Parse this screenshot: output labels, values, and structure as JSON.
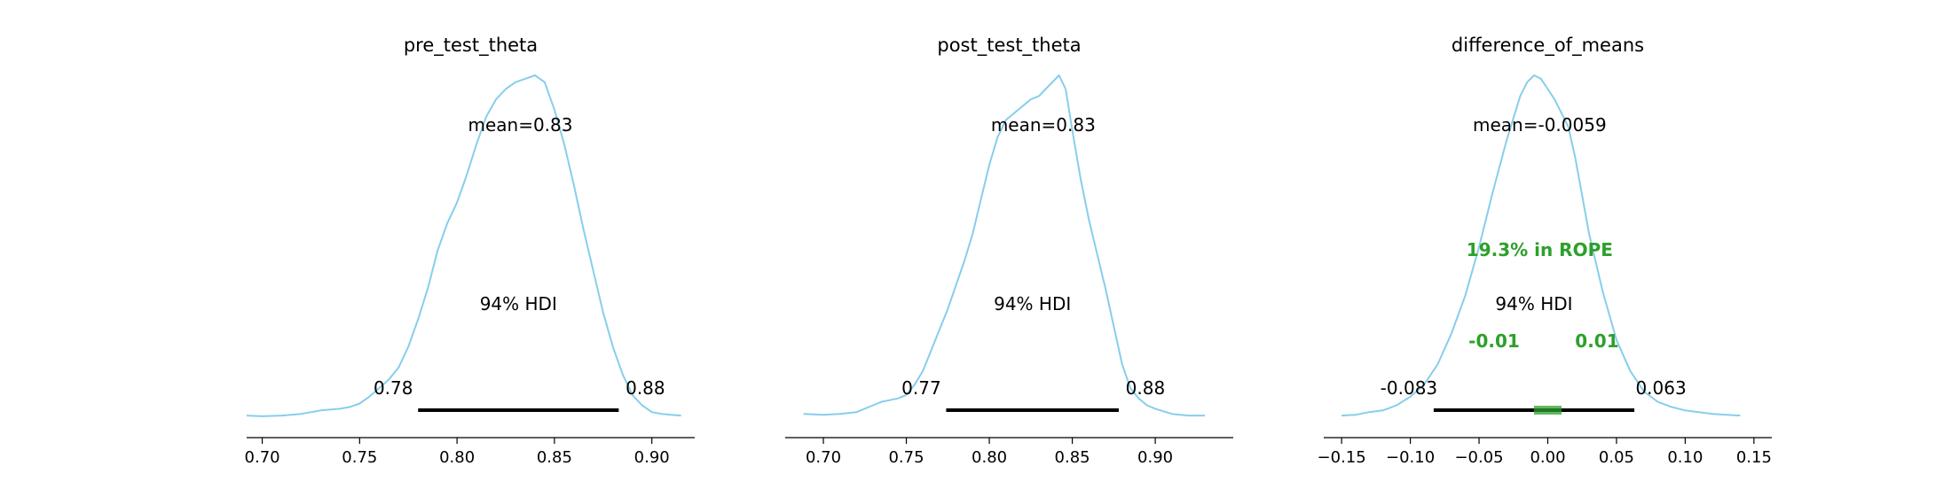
{
  "colors": {
    "density": "#87ceeb",
    "hdi_bar": "#000000",
    "rope": "#2ca02c",
    "axis": "#000000",
    "text": "#000000"
  },
  "chart_data": [
    {
      "type": "area",
      "title": "pre_test_theta",
      "xlabel": "",
      "ylabel": "",
      "x_ticks": [
        0.7,
        0.75,
        0.8,
        0.85,
        0.9
      ],
      "x_tick_labels": [
        "0.70",
        "0.75",
        "0.80",
        "0.85",
        "0.90"
      ],
      "xlim": [
        0.692,
        0.922
      ],
      "mean_label": "mean=0.83",
      "hdi_label": "94% HDI",
      "hdi": [
        0.78,
        0.883
      ],
      "hdi_labels": [
        "0.78",
        "0.88"
      ],
      "density": {
        "x": [
          0.692,
          0.7,
          0.71,
          0.72,
          0.73,
          0.74,
          0.745,
          0.75,
          0.755,
          0.76,
          0.765,
          0.77,
          0.775,
          0.78,
          0.785,
          0.79,
          0.795,
          0.8,
          0.805,
          0.81,
          0.815,
          0.82,
          0.825,
          0.83,
          0.835,
          0.84,
          0.845,
          0.85,
          0.855,
          0.86,
          0.865,
          0.87,
          0.875,
          0.88,
          0.885,
          0.89,
          0.895,
          0.9,
          0.905,
          0.91,
          0.915
        ],
        "y": [
          0.01,
          0.008,
          0.01,
          0.015,
          0.025,
          0.03,
          0.035,
          0.045,
          0.065,
          0.09,
          0.115,
          0.15,
          0.21,
          0.29,
          0.38,
          0.49,
          0.57,
          0.63,
          0.71,
          0.8,
          0.88,
          0.93,
          0.96,
          0.98,
          0.99,
          1.0,
          0.98,
          0.9,
          0.8,
          0.68,
          0.55,
          0.43,
          0.31,
          0.21,
          0.13,
          0.07,
          0.04,
          0.02,
          0.015,
          0.012,
          0.01
        ]
      }
    },
    {
      "type": "area",
      "title": "post_test_theta",
      "xlabel": "",
      "ylabel": "",
      "x_ticks": [
        0.7,
        0.75,
        0.8,
        0.85,
        0.9
      ],
      "x_tick_labels": [
        "0.70",
        "0.75",
        "0.80",
        "0.85",
        "0.90"
      ],
      "xlim": [
        0.677,
        0.947
      ],
      "mean_label": "mean=0.83",
      "hdi_label": "94% HDI",
      "hdi": [
        0.774,
        0.878
      ],
      "hdi_labels": [
        "0.77",
        "0.88"
      ],
      "density": {
        "x": [
          0.688,
          0.7,
          0.71,
          0.72,
          0.73,
          0.735,
          0.74,
          0.745,
          0.75,
          0.755,
          0.76,
          0.765,
          0.77,
          0.775,
          0.78,
          0.785,
          0.79,
          0.795,
          0.8,
          0.805,
          0.81,
          0.815,
          0.82,
          0.825,
          0.83,
          0.834,
          0.838,
          0.842,
          0.846,
          0.85,
          0.855,
          0.86,
          0.865,
          0.87,
          0.875,
          0.88,
          0.885,
          0.89,
          0.895,
          0.9,
          0.91,
          0.92,
          0.93
        ],
        "y": [
          0.015,
          0.012,
          0.015,
          0.02,
          0.04,
          0.05,
          0.055,
          0.06,
          0.07,
          0.1,
          0.14,
          0.2,
          0.26,
          0.32,
          0.39,
          0.46,
          0.54,
          0.64,
          0.74,
          0.82,
          0.87,
          0.89,
          0.91,
          0.93,
          0.94,
          0.96,
          0.98,
          1.0,
          0.96,
          0.84,
          0.7,
          0.58,
          0.48,
          0.38,
          0.27,
          0.16,
          0.09,
          0.06,
          0.04,
          0.03,
          0.015,
          0.01,
          0.01
        ]
      }
    },
    {
      "type": "area",
      "title": "difference_of_means",
      "xlabel": "",
      "ylabel": "",
      "x_ticks": [
        -0.15,
        -0.1,
        -0.05,
        0.0,
        0.05,
        0.1,
        0.15
      ],
      "x_tick_labels": [
        "−0.15",
        "−0.10",
        "−0.05",
        "0.00",
        "0.05",
        "0.10",
        "0.15"
      ],
      "xlim": [
        -0.163,
        0.163
      ],
      "mean_label": "mean=-0.0059",
      "hdi_label": "94% HDI",
      "hdi": [
        -0.083,
        0.063
      ],
      "hdi_labels": [
        "-0.083",
        "0.063"
      ],
      "rope": [
        -0.01,
        0.01
      ],
      "rope_labels": [
        "-0.01",
        "0.01"
      ],
      "rope_text": "19.3% in ROPE",
      "density": {
        "x": [
          -0.15,
          -0.14,
          -0.13,
          -0.12,
          -0.11,
          -0.1,
          -0.09,
          -0.08,
          -0.07,
          -0.06,
          -0.05,
          -0.04,
          -0.03,
          -0.02,
          -0.015,
          -0.01,
          -0.005,
          0.0,
          0.005,
          0.01,
          0.015,
          0.02,
          0.03,
          0.04,
          0.05,
          0.06,
          0.07,
          0.08,
          0.09,
          0.1,
          0.11,
          0.12,
          0.13,
          0.14
        ],
        "y": [
          0.01,
          0.012,
          0.02,
          0.025,
          0.04,
          0.065,
          0.1,
          0.16,
          0.25,
          0.36,
          0.5,
          0.66,
          0.81,
          0.94,
          0.98,
          1.0,
          0.99,
          0.96,
          0.93,
          0.89,
          0.85,
          0.76,
          0.54,
          0.37,
          0.23,
          0.14,
          0.08,
          0.05,
          0.035,
          0.025,
          0.02,
          0.015,
          0.012,
          0.01
        ]
      }
    }
  ]
}
